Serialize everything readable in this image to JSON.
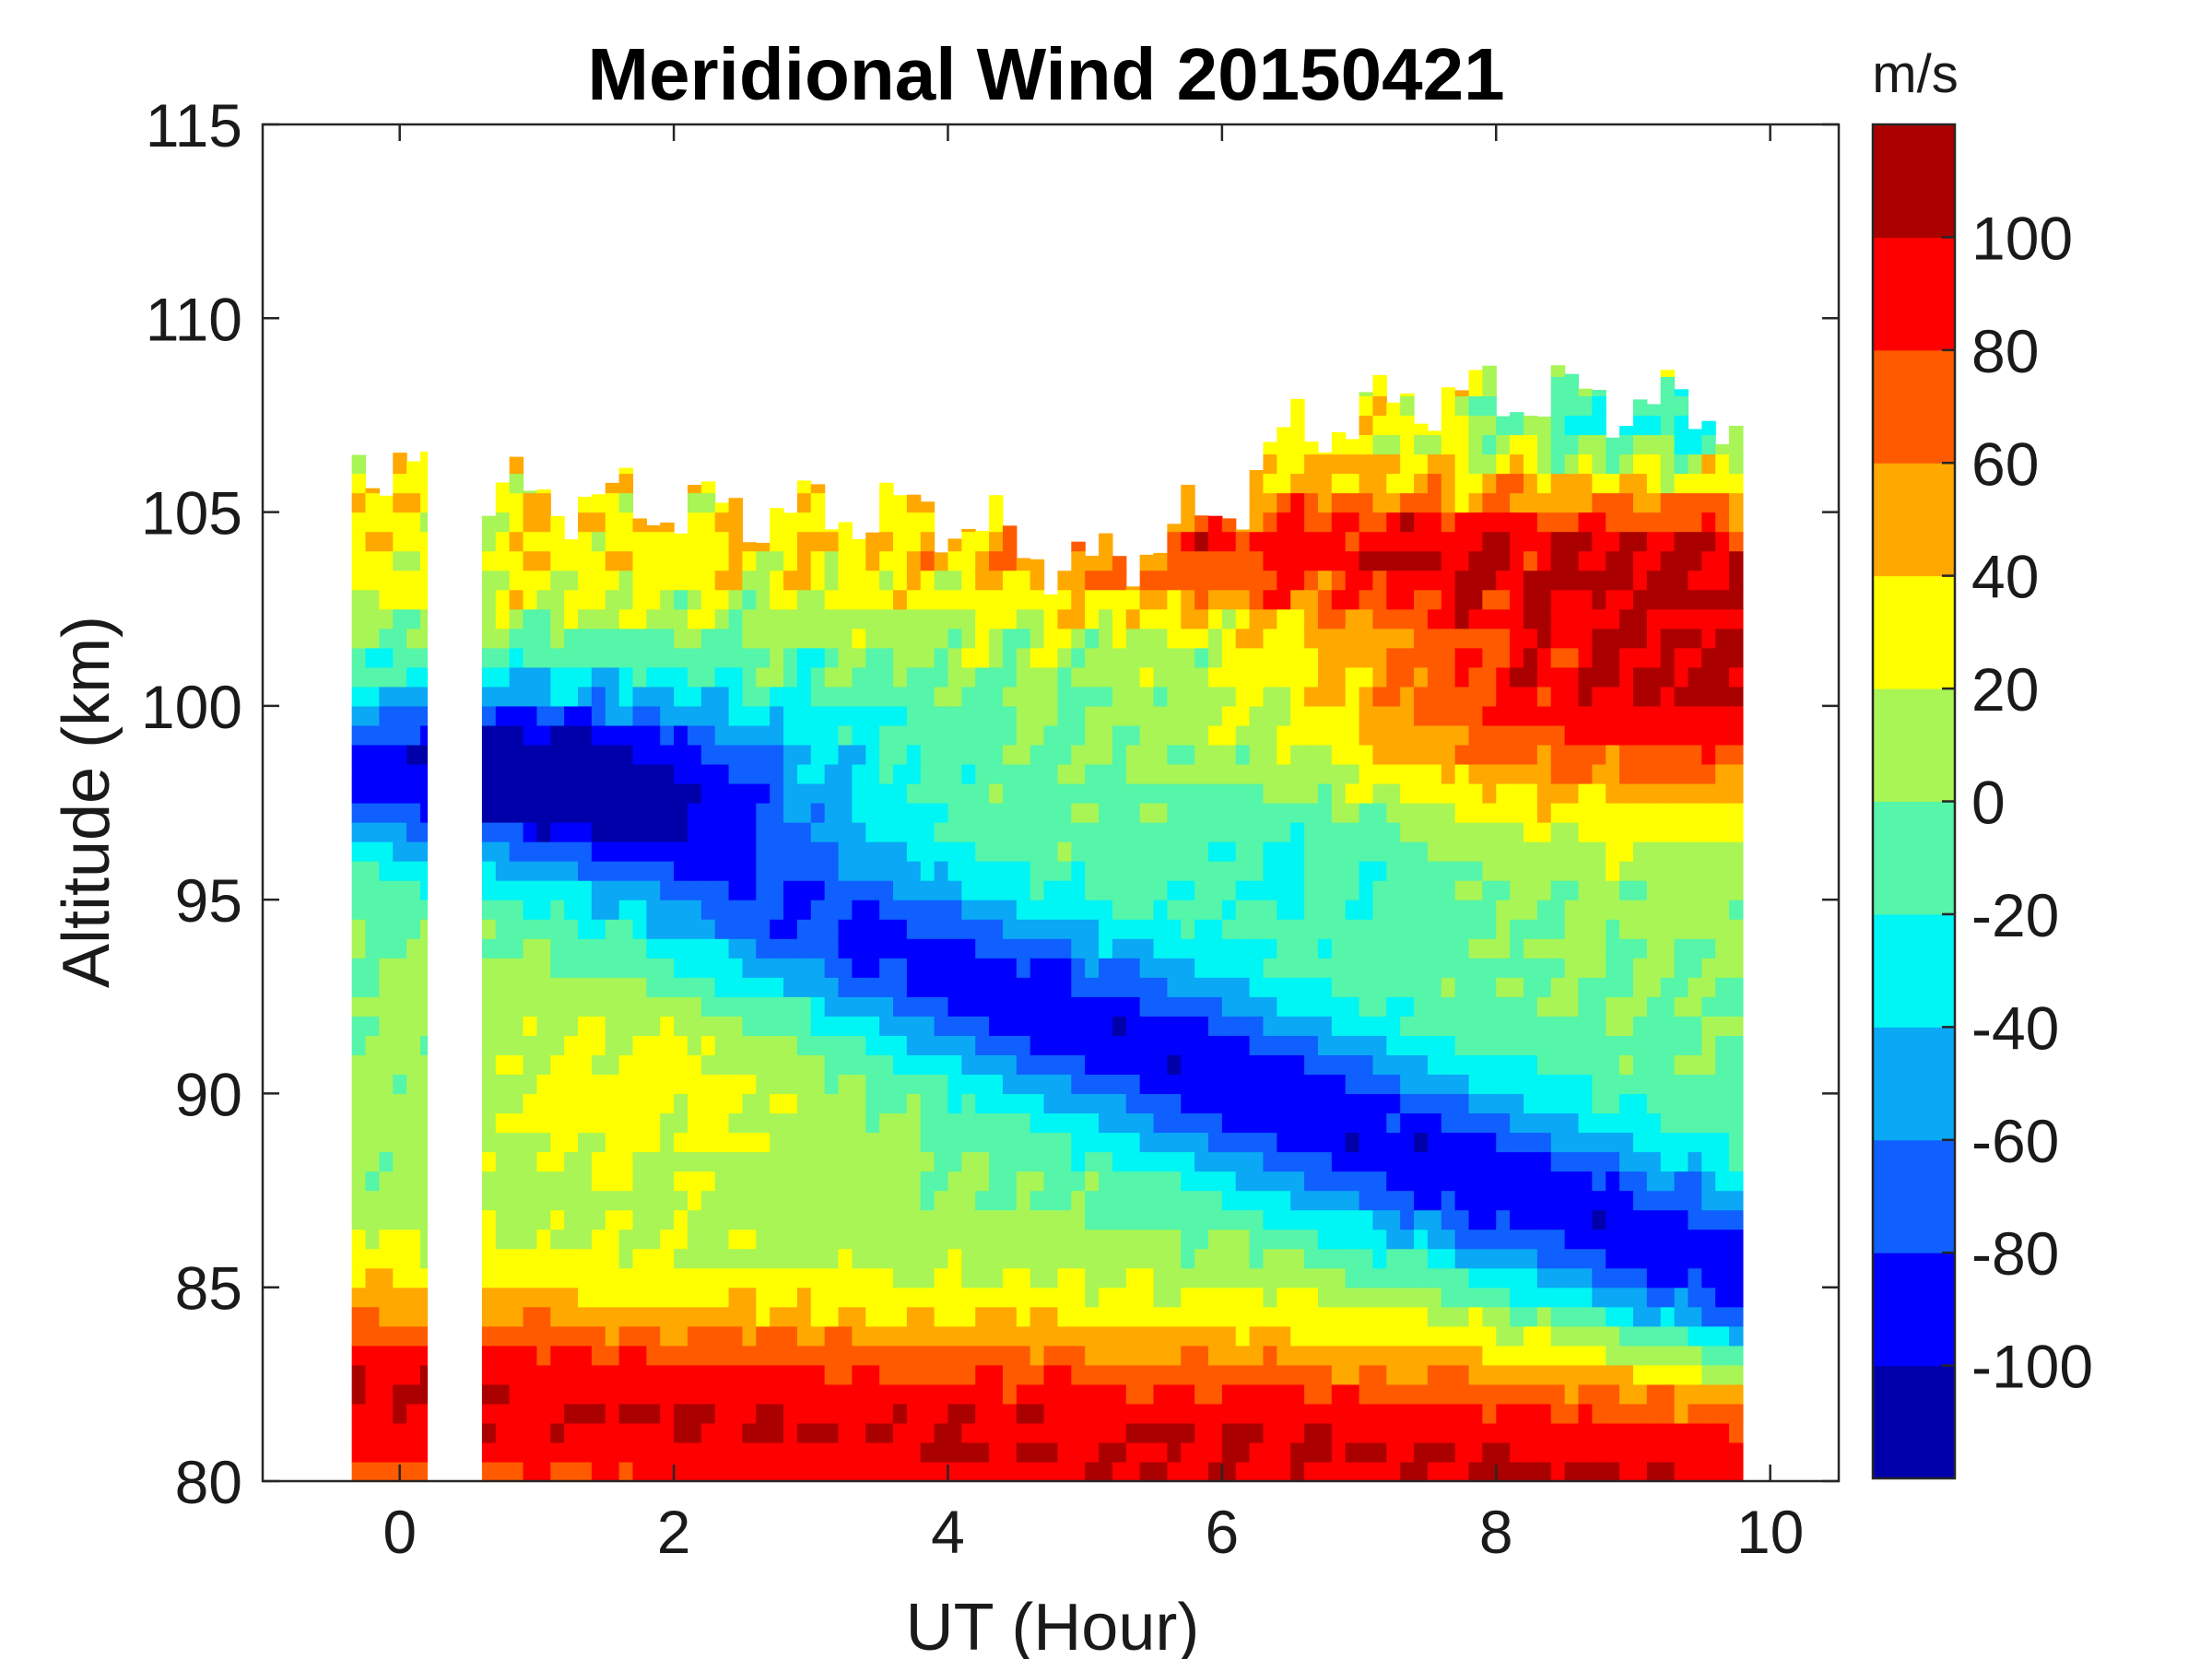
{
  "chart_data": {
    "type": "heatmap",
    "subtype": "filled-contour",
    "title": "Meridional Wind 20150421",
    "xlabel": "UT (Hour)",
    "ylabel": "Altitude (km)",
    "xlim": [
      -1,
      10.5
    ],
    "ylim": [
      80,
      115
    ],
    "xticks": [
      0,
      2,
      4,
      6,
      8,
      10
    ],
    "yticks": [
      80,
      85,
      90,
      95,
      100,
      105,
      110,
      115
    ],
    "colorbar": {
      "label": "m/s",
      "range": [
        -120,
        120
      ],
      "levels": [
        -120,
        -100,
        -80,
        -60,
        -40,
        -20,
        0,
        20,
        40,
        60,
        80,
        100,
        120
      ],
      "tick_values": [
        -100,
        -80,
        -60,
        -40,
        -20,
        0,
        20,
        40,
        60,
        80,
        100
      ],
      "tick_labels": [
        "-100",
        "-80",
        "-60",
        "-40",
        "-20",
        "0",
        "20",
        "40",
        "60",
        "80",
        "100"
      ],
      "colors": [
        "#0000aa",
        "#0000ff",
        "#0f60ff",
        "#0aa8f5",
        "#00f5f5",
        "#55f5aa",
        "#a8f555",
        "#ffff00",
        "#ffa800",
        "#ff5a00",
        "#ff0000",
        "#aa0000"
      ]
    },
    "data_coverage": {
      "time_segments": [
        [
          -0.35,
          0.2
        ],
        [
          0.6,
          9.8
        ]
      ],
      "top_altitude": [
        [
          -0.35,
          106.5
        ],
        [
          0.6,
          105.5
        ],
        [
          2.5,
          105
        ],
        [
          3.9,
          105
        ],
        [
          5.0,
          103.5
        ],
        [
          6.0,
          105
        ],
        [
          6.5,
          107
        ],
        [
          7.5,
          108
        ],
        [
          8.5,
          108
        ],
        [
          9.8,
          107.5
        ]
      ],
      "bottom_altitude": 80
    },
    "wind_features": [
      {
        "name": "lower positive (northward) wind",
        "time_range": [
          -0.35,
          9.8
        ],
        "altitude_range": [
          80,
          95
        ],
        "peak_m_s": 110
      },
      {
        "name": "upper negative band at 0-3 UT",
        "time_range": [
          -0.35,
          3.0
        ],
        "altitude_range": [
          96,
          100
        ],
        "peak_m_s": -110
      },
      {
        "name": "descending negative band",
        "time_range": [
          5.0,
          9.8
        ],
        "altitude_range": [
          86,
          92
        ],
        "peak_m_s": -110
      },
      {
        "name": "upper positive wind at 7-10 UT",
        "time_range": [
          6.0,
          9.8
        ],
        "altitude_range": [
          96,
          105
        ],
        "peak_m_s": 110
      }
    ]
  }
}
